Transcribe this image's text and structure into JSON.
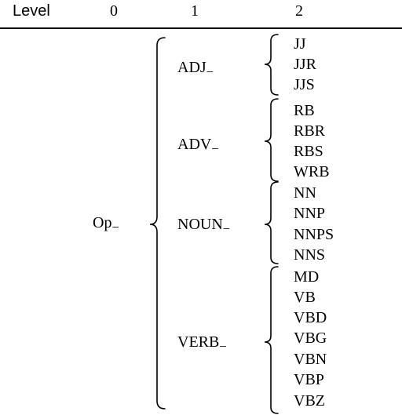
{
  "header": {
    "level_label": "Level",
    "col0": "0",
    "col1": "1",
    "col2": "2"
  },
  "tree": {
    "root": "Op",
    "groups": [
      {
        "label": "ADJ",
        "leaves": [
          "JJ",
          "JJR",
          "JJS"
        ]
      },
      {
        "label": "ADV",
        "leaves": [
          "RB",
          "RBR",
          "RBS",
          "WRB"
        ]
      },
      {
        "label": "NOUN",
        "leaves": [
          "NN",
          "NNP",
          "NNPS",
          "NNS"
        ]
      },
      {
        "label": "VERB",
        "leaves": [
          "MD",
          "VB",
          "VBD",
          "VBG",
          "VBN",
          "VBP",
          "VBZ"
        ]
      }
    ]
  }
}
